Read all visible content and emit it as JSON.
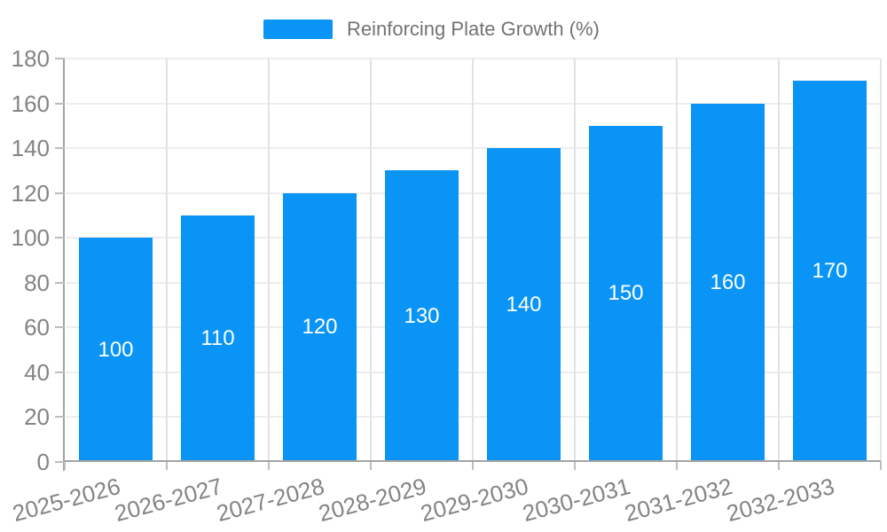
{
  "legend": {
    "label": "Reinforcing Plate Growth (%)"
  },
  "colors": {
    "bar": "#0a94f5",
    "axis_line": "#a3a3a3",
    "grid_h": "#ededed",
    "grid_v": "#e3e3e3",
    "tick": "#bdbdbd",
    "axis_label": "#848484",
    "legend_text": "#737373",
    "value_label": "#ffffff",
    "background": "#ffffff"
  },
  "chart_data": {
    "type": "bar",
    "title": "Reinforcing Plate Growth (%)",
    "categories": [
      "2025-2026",
      "2026-2027",
      "2027-2028",
      "2028-2029",
      "2029-2030",
      "2030-2031",
      "2031-2032",
      "2032-2033"
    ],
    "values": [
      100,
      110,
      120,
      130,
      140,
      150,
      160,
      170
    ],
    "xlabel": "",
    "ylabel": "",
    "ylim": [
      0,
      180
    ],
    "ytick_step": 20,
    "grid": true,
    "legend_position": "top-center",
    "value_label_position": "inside-center",
    "x_label_rotation_deg": -15
  }
}
